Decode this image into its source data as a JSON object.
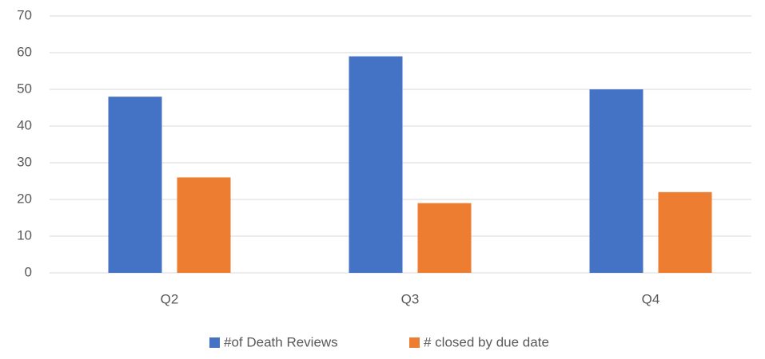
{
  "chart_data": {
    "type": "bar",
    "categories": [
      "Q2",
      "Q3",
      "Q4"
    ],
    "series": [
      {
        "name": "#of Death Reviews",
        "color": "#4472c4",
        "values": [
          48,
          59,
          50
        ]
      },
      {
        "name": "# closed by due date",
        "color": "#ed7d31",
        "values": [
          26,
          19,
          22
        ]
      }
    ],
    "ylim": [
      0,
      70
    ],
    "yticks": [
      0,
      10,
      20,
      30,
      40,
      50,
      60,
      70
    ],
    "grid": true,
    "legend": "bottom"
  }
}
